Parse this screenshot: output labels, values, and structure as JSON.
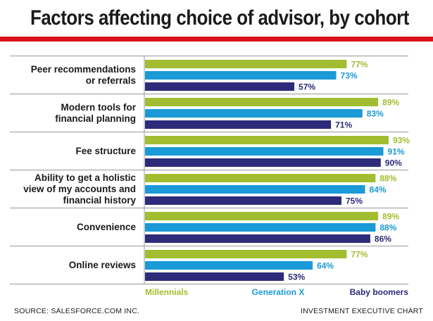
{
  "title": "Factors affecting choice of advisor, by cohort",
  "footer": {
    "source": "SOURCE: SALESFORCE.COM INC.",
    "credit": "INVESTMENT EXECUTIVE CHART"
  },
  "colors": {
    "millennials": "#a3bd31",
    "generation_x": "#1a9ad6",
    "baby_boomers": "#2e2b7a",
    "rule": "#d9141b",
    "separator": "#999999"
  },
  "chart_data": {
    "type": "bar",
    "orientation": "horizontal",
    "title": "Factors affecting choice of advisor, by cohort",
    "categories": [
      [
        "Peer recommendations",
        "or referrals"
      ],
      [
        "Modern tools for",
        "financial planning"
      ],
      [
        "Fee structure"
      ],
      [
        "Ability to get a holistic",
        "view of my accounts and",
        "financial history"
      ],
      [
        "Convenience"
      ],
      [
        "Online reviews"
      ]
    ],
    "series": [
      {
        "name": "Millennials",
        "color": "#a3bd31",
        "values": [
          77,
          89,
          93,
          88,
          89,
          77
        ]
      },
      {
        "name": "Generation X",
        "color": "#1a9ad6",
        "values": [
          73,
          83,
          91,
          84,
          88,
          64
        ]
      },
      {
        "name": "Baby boomers",
        "color": "#2e2b7a",
        "values": [
          57,
          71,
          90,
          75,
          86,
          53
        ]
      }
    ],
    "value_suffix": "%",
    "xlim": [
      0,
      100
    ],
    "grid": false,
    "legend_placement": "bottom"
  }
}
